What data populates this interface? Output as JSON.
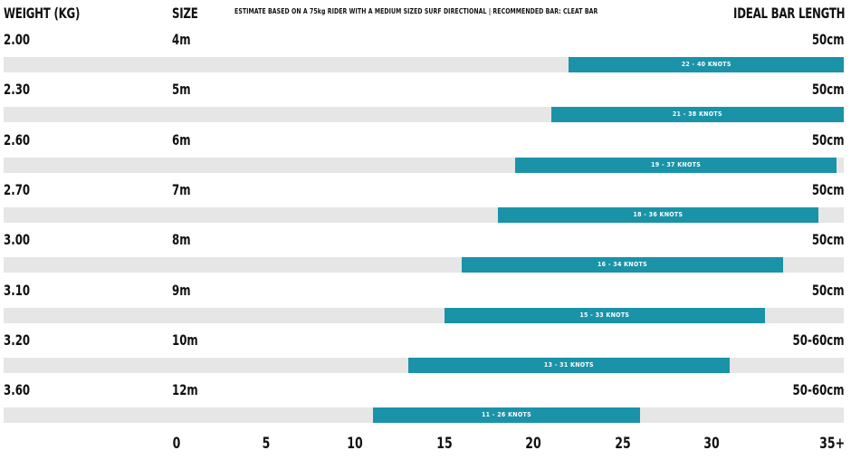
{
  "header": {
    "weight": "WEIGHT (KG)",
    "size": "SIZE",
    "note": "ESTIMATE BASED ON A 75kg RIDER WITH A MEDIUM SIZED SURF DIRECTIONAL  |  RECOMMENDED BAR: CLEAT BAR",
    "length": "IDEAL BAR LENGTH"
  },
  "chart_data": {
    "type": "bar",
    "orientation": "horizontal-range",
    "xlim": [
      0,
      35
    ],
    "x_ticks": [
      "0",
      "5",
      "10",
      "15",
      "20",
      "25",
      "30",
      "35+"
    ],
    "rows": [
      {
        "weight": "2.00",
        "size": "4m",
        "length": "50cm",
        "min": 22,
        "max": 40,
        "label": "22 - 40 KNOTS"
      },
      {
        "weight": "2.30",
        "size": "5m",
        "length": "50cm",
        "min": 21,
        "max": 38,
        "label": "21 - 38 KNOTS"
      },
      {
        "weight": "2.60",
        "size": "6m",
        "length": "50cm",
        "min": 19,
        "max": 37,
        "label": "19 - 37 KNOTS"
      },
      {
        "weight": "2.70",
        "size": "7m",
        "length": "50cm",
        "min": 18,
        "max": 36,
        "label": "18 - 36 KNOTS"
      },
      {
        "weight": "3.00",
        "size": "8m",
        "length": "50cm",
        "min": 16,
        "max": 34,
        "label": "16 - 34 KNOTS"
      },
      {
        "weight": "3.10",
        "size": "9m",
        "length": "50cm",
        "min": 15,
        "max": 33,
        "label": "15 - 33 KNOTS"
      },
      {
        "weight": "3.20",
        "size": "10m",
        "length": "50-60cm",
        "min": 13,
        "max": 31,
        "label": "13 - 31 KNOTS"
      },
      {
        "weight": "3.60",
        "size": "12m",
        "length": "50-60cm",
        "min": 11,
        "max": 26,
        "label": "11 - 26 KNOTS"
      }
    ],
    "colors": {
      "bar": "#1a93a8",
      "track": "#e6e6e6"
    }
  }
}
